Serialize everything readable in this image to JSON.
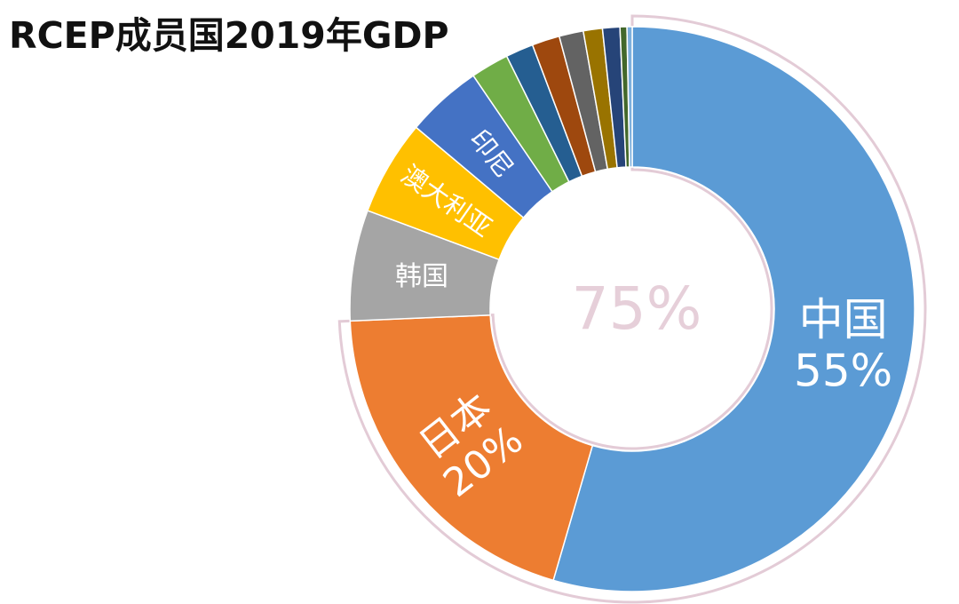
{
  "chart_data": {
    "type": "pie",
    "title": "RCEP成员国2019年GDP",
    "center_text": "75%",
    "slices": [
      {
        "label": "中国",
        "value_label": "55%",
        "value": 55.0,
        "color": "#5b9bd5"
      },
      {
        "label": "日本",
        "value_label": "20%",
        "value": 20.0,
        "color": "#ed7d31"
      },
      {
        "label": "韩国",
        "value_label": "",
        "value": 6.4,
        "color": "#a5a5a5"
      },
      {
        "label": "澳大利亚",
        "value_label": "",
        "value": 5.5,
        "color": "#ffc000"
      },
      {
        "label": "印尼",
        "value_label": "",
        "value": 4.4,
        "color": "#4472c4"
      },
      {
        "label": "",
        "value_label": "",
        "value": 2.2,
        "color": "#70ad47"
      },
      {
        "label": "",
        "value_label": "",
        "value": 1.6,
        "color": "#255e91"
      },
      {
        "label": "",
        "value_label": "",
        "value": 1.6,
        "color": "#9e480e"
      },
      {
        "label": "",
        "value_label": "",
        "value": 1.4,
        "color": "#636363"
      },
      {
        "label": "",
        "value_label": "",
        "value": 1.1,
        "color": "#997300"
      },
      {
        "label": "",
        "value_label": "",
        "value": 1.0,
        "color": "#264478"
      },
      {
        "label": "",
        "value_label": "",
        "value": 0.4,
        "color": "#43682b"
      },
      {
        "label": "",
        "value_label": "",
        "value": 0.3,
        "color": "#7cafdd"
      }
    ],
    "highlight_group": {
      "slices": [
        "中国",
        "日本"
      ],
      "share_label": "75%"
    }
  }
}
